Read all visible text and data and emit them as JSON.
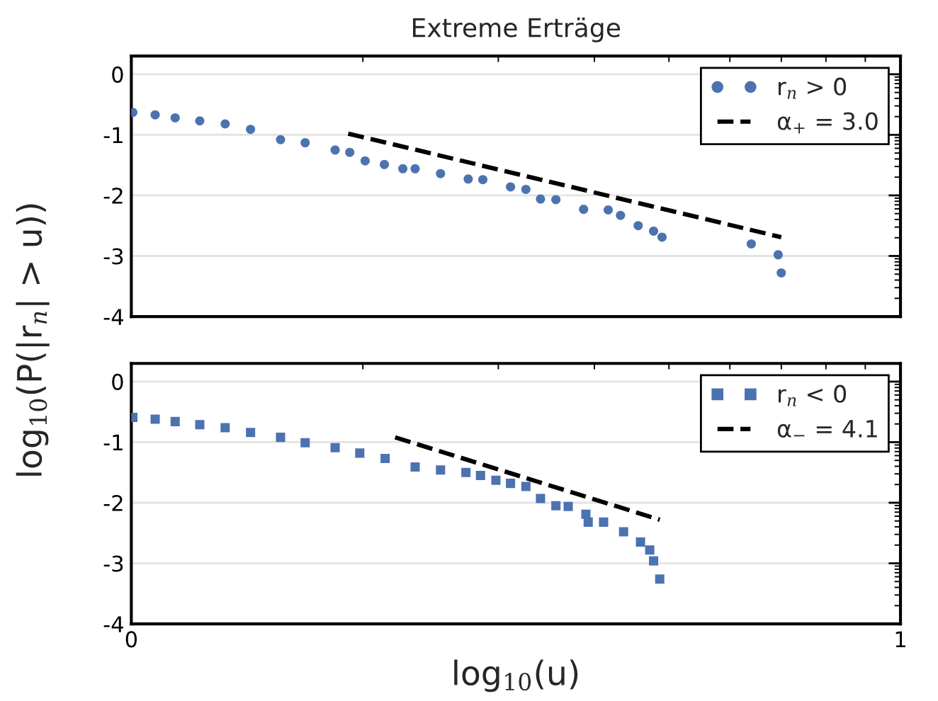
{
  "chart_data": [
    {
      "type": "scatter",
      "title": "Extreme Erträge",
      "ylabel": "log$_{10}$(P(|r$_{n}$| > u))",
      "xlim": [
        0,
        1
      ],
      "ylim": [
        -4,
        0.3
      ],
      "yticks": [
        {
          "value": -4,
          "label": "-4"
        },
        {
          "value": -3,
          "label": "-3"
        },
        {
          "value": -2,
          "label": "-2"
        },
        {
          "value": -1,
          "label": "-1"
        },
        {
          "value": 0,
          "label": "0"
        }
      ],
      "tick_labels": "y",
      "grid": "y",
      "legend": "top right",
      "series": [
        {
          "name": "r$_{n}$ > 0",
          "color": "#4c72b0",
          "marker": "circle",
          "x": [
            0.002,
            0.031,
            0.057,
            0.089,
            0.122,
            0.155,
            0.194,
            0.226,
            0.265,
            0.284,
            0.304,
            0.329,
            0.353,
            0.369,
            0.402,
            0.438,
            0.457,
            0.493,
            0.513,
            0.532,
            0.552,
            0.588,
            0.62,
            0.636,
            0.659,
            0.679,
            0.69,
            0.806,
            0.841,
            0.845
          ],
          "values": [
            -0.63,
            -0.67,
            -0.72,
            -0.77,
            -0.82,
            -0.91,
            -1.08,
            -1.13,
            -1.25,
            -1.29,
            -1.43,
            -1.49,
            -1.56,
            -1.56,
            -1.64,
            -1.73,
            -1.74,
            -1.86,
            -1.9,
            -2.06,
            -2.07,
            -2.23,
            -2.24,
            -2.33,
            -2.5,
            -2.59,
            -2.69,
            -2.8,
            -2.98,
            -3.28
          ]
        },
        {
          "name": "α$_{+}$ = 3.0",
          "type": "line",
          "line_style": "dashed",
          "color": "#000000",
          "x": [
            0.282,
            0.845
          ],
          "values": [
            -0.98,
            -2.69
          ]
        }
      ]
    },
    {
      "type": "scatter",
      "xlabel": "log$_{10}$(u)",
      "xlim": [
        0,
        1
      ],
      "ylim": [
        -4,
        0.3
      ],
      "xticks": [
        {
          "value": 0,
          "label": "0"
        },
        {
          "value": 1,
          "label": "1"
        }
      ],
      "yticks": [
        {
          "value": -4,
          "label": "-4"
        },
        {
          "value": -3,
          "label": "-3"
        },
        {
          "value": -2,
          "label": "-2"
        },
        {
          "value": -1,
          "label": "-1"
        },
        {
          "value": 0,
          "label": "0"
        }
      ],
      "grid": "y",
      "legend": "top right",
      "series": [
        {
          "name": "r$_{n}$ < 0",
          "color": "#4c72b0",
          "marker": "square",
          "x": [
            0.002,
            0.031,
            0.057,
            0.089,
            0.122,
            0.155,
            0.194,
            0.226,
            0.265,
            0.297,
            0.33,
            0.369,
            0.402,
            0.435,
            0.454,
            0.474,
            0.493,
            0.513,
            0.532,
            0.552,
            0.568,
            0.591,
            0.594,
            0.614,
            0.64,
            0.662,
            0.674,
            0.679,
            0.687
          ],
          "values": [
            -0.59,
            -0.62,
            -0.66,
            -0.71,
            -0.76,
            -0.84,
            -0.92,
            -1.01,
            -1.09,
            -1.18,
            -1.27,
            -1.41,
            -1.46,
            -1.5,
            -1.55,
            -1.63,
            -1.68,
            -1.73,
            -1.93,
            -2.05,
            -2.06,
            -2.19,
            -2.32,
            -2.32,
            -2.48,
            -2.65,
            -2.78,
            -2.96,
            -3.26
          ]
        },
        {
          "name": "α$_{−}$ = 4.1",
          "type": "line",
          "line_style": "dashed",
          "color": "#000000",
          "x": [
            0.343,
            0.687
          ],
          "values": [
            -0.92,
            -2.28
          ]
        }
      ]
    }
  ]
}
